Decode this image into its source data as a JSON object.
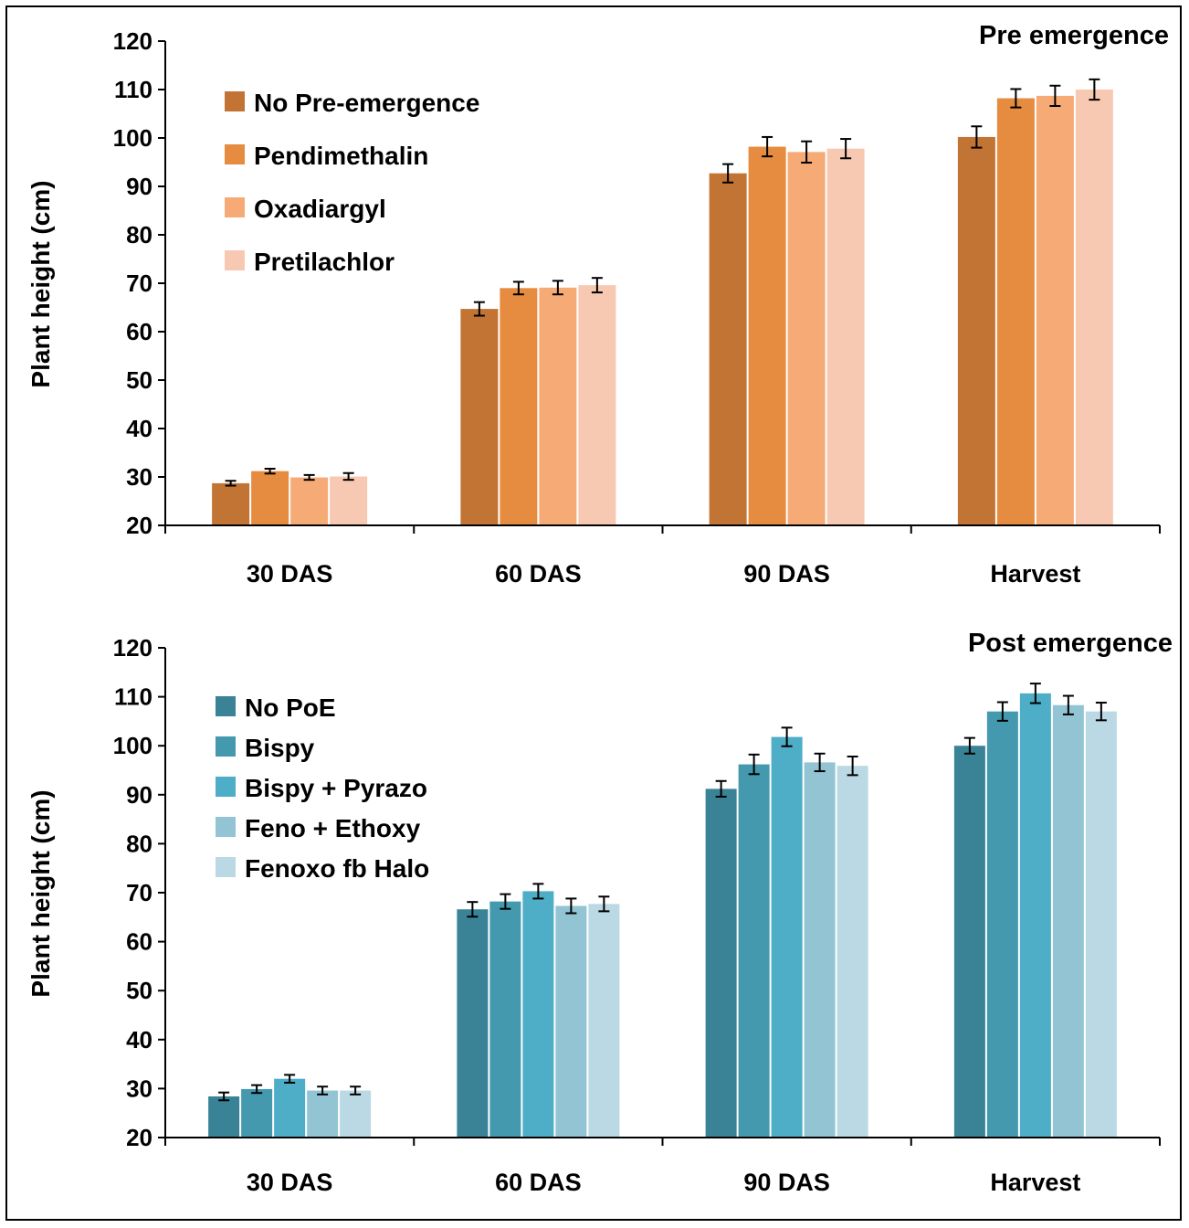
{
  "chart_data": [
    {
      "type": "bar",
      "title": "Pre emergence",
      "ylabel": "Plant height (cm)",
      "xlabel": "",
      "ylim": [
        20,
        120
      ],
      "yticks": [
        20,
        30,
        40,
        50,
        60,
        70,
        80,
        90,
        100,
        110,
        120
      ],
      "categories": [
        "30 DAS",
        "60 DAS",
        "90 DAS",
        "Harvest"
      ],
      "legend_position": "top-left",
      "series": [
        {
          "name": "No Pre-emergence",
          "color": "#c27434",
          "values": [
            28.7,
            64.7,
            92.7,
            100.2
          ],
          "errors": [
            0.5,
            1.4,
            1.9,
            2.2
          ]
        },
        {
          "name": "Pendimethalin",
          "color": "#e58c40",
          "values": [
            31.2,
            69.0,
            98.2,
            108.2
          ],
          "errors": [
            0.5,
            1.3,
            2.0,
            1.9
          ]
        },
        {
          "name": "Oxadiargyl",
          "color": "#f6ab77",
          "values": [
            29.9,
            69.1,
            97.1,
            108.7
          ],
          "errors": [
            0.5,
            1.4,
            2.2,
            2.1
          ]
        },
        {
          "name": "Pretilachlor",
          "color": "#f8c9b2",
          "values": [
            30.1,
            69.6,
            97.8,
            110.0
          ],
          "errors": [
            0.7,
            1.5,
            2.0,
            2.1
          ]
        }
      ]
    },
    {
      "type": "bar",
      "title": "Post emergence",
      "ylabel": "Plant height (cm)",
      "xlabel": "",
      "ylim": [
        20,
        120
      ],
      "yticks": [
        20,
        30,
        40,
        50,
        60,
        70,
        80,
        90,
        100,
        110,
        120
      ],
      "categories": [
        "30 DAS",
        "60 DAS",
        "90 DAS",
        "Harvest"
      ],
      "legend_position": "top-left",
      "series": [
        {
          "name": "No PoE",
          "color": "#3a8296",
          "values": [
            28.4,
            66.6,
            91.2,
            100.0
          ],
          "errors": [
            0.8,
            1.5,
            1.6,
            1.6
          ]
        },
        {
          "name": "Bispy",
          "color": "#4499af",
          "values": [
            29.9,
            68.2,
            96.2,
            107.0
          ],
          "errors": [
            0.8,
            1.5,
            2.0,
            1.9
          ]
        },
        {
          "name": "Bispy + Pyrazo",
          "color": "#4eadc7",
          "values": [
            32.0,
            70.3,
            101.8,
            110.7
          ],
          "errors": [
            0.8,
            1.5,
            1.9,
            2.0
          ]
        },
        {
          "name": "Feno + Ethoxy",
          "color": "#93c4d4",
          "values": [
            29.6,
            67.3,
            96.6,
            108.3
          ],
          "errors": [
            0.8,
            1.5,
            1.8,
            1.9
          ]
        },
        {
          "name": "Fenoxo fb Halo",
          "color": "#bbd9e4",
          "values": [
            29.6,
            67.7,
            95.9,
            107.0
          ],
          "errors": [
            0.8,
            1.5,
            1.9,
            1.8
          ]
        }
      ]
    }
  ]
}
